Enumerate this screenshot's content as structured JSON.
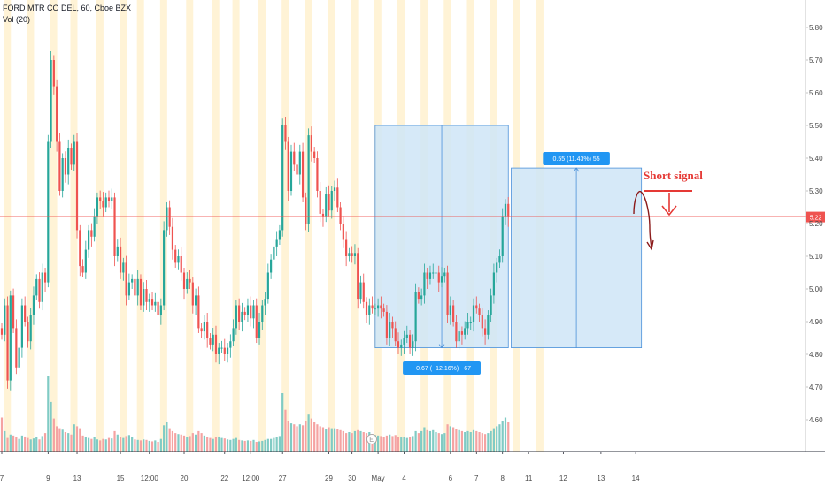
{
  "legend": {
    "symbol_line": "FORD MTR CO DEL, 60, Cboe BZX",
    "volume_line": "Vol (20)"
  },
  "colors": {
    "up": "#26a69a",
    "down": "#ef5350",
    "up_volume": "#80cbc4",
    "down_volume": "#f5a3a2",
    "session_band": "#fff3d6",
    "measure_fill": "#cfe5f7",
    "measure_border": "#4a90d9",
    "badge": "#2196f3",
    "price_line": "#ef5350",
    "annotation": "#e53935",
    "brush": "#8b1a1a"
  },
  "chart_data": {
    "type": "candlestick",
    "title": "FORD MTR CO DEL, 60, Cboe BZX",
    "symbol": "FORD MTR CO DEL",
    "interval": "60",
    "exchange": "Cboe BZX",
    "indicator": "Vol (20)",
    "y_axis": {
      "position": "right",
      "range": [
        4.52,
        5.88
      ],
      "ticks": [
        "4.60",
        "4.70",
        "4.80",
        "4.90",
        "5.00",
        "5.10",
        "5.20",
        "5.30",
        "5.40",
        "5.50",
        "5.60",
        "5.70",
        "5.80"
      ]
    },
    "x_axis": {
      "ticks": [
        {
          "i": 0,
          "label": "7"
        },
        {
          "i": 16,
          "label": "9"
        },
        {
          "i": 26,
          "label": "13"
        },
        {
          "i": 41,
          "label": "15"
        },
        {
          "i": 51,
          "label": "12:00"
        },
        {
          "i": 63,
          "label": "20"
        },
        {
          "i": 77,
          "label": "22"
        },
        {
          "i": 86,
          "label": "12:00"
        },
        {
          "i": 97,
          "label": "27"
        },
        {
          "i": 113,
          "label": "29"
        },
        {
          "i": 121,
          "label": "30"
        },
        {
          "i": 130,
          "label": "May"
        },
        {
          "i": 139,
          "label": "4"
        },
        {
          "i": 155,
          "label": "6"
        },
        {
          "i": 164,
          "label": "7"
        },
        {
          "i": 173,
          "label": "8"
        },
        {
          "i": 182,
          "label": "11"
        },
        {
          "i": 194,
          "label": "12"
        },
        {
          "i": 207,
          "label": "13"
        },
        {
          "i": 219,
          "label": "14"
        }
      ]
    },
    "last_price": {
      "value": 5.22,
      "label": "5.22"
    },
    "closes": [
      4.86,
      4.95,
      4.72,
      4.98,
      4.88,
      4.76,
      4.82,
      4.95,
      4.9,
      4.84,
      4.92,
      4.98,
      5.03,
      4.96,
      5.05,
      5.02,
      5.45,
      5.7,
      5.62,
      5.45,
      5.3,
      5.4,
      5.35,
      5.43,
      5.38,
      5.45,
      5.18,
      5.07,
      5.05,
      5.12,
      5.18,
      5.16,
      5.22,
      5.28,
      5.27,
      5.25,
      5.28,
      5.27,
      5.28,
      5.1,
      5.13,
      5.05,
      5.08,
      4.98,
      5.02,
      5.03,
      4.98,
      5.03,
      4.95,
      5.0,
      4.96,
      4.97,
      4.95,
      4.96,
      4.92,
      4.95,
      5.18,
      5.25,
      5.19,
      5.12,
      5.08,
      5.1,
      5.05,
      5.0,
      5.03,
      5.02,
      4.95,
      4.98,
      4.88,
      4.87,
      4.9,
      4.85,
      4.83,
      4.86,
      4.8,
      4.82,
      4.82,
      4.8,
      4.82,
      4.84,
      4.88,
      4.95,
      4.9,
      4.93,
      4.92,
      4.95,
      4.91,
      4.95,
      4.85,
      4.9,
      4.95,
      4.97,
      5.05,
      5.09,
      5.13,
      5.15,
      5.18,
      5.5,
      5.45,
      5.3,
      5.42,
      5.38,
      5.35,
      5.42,
      5.28,
      5.2,
      5.47,
      5.42,
      5.4,
      5.3,
      5.23,
      5.22,
      5.29,
      5.24,
      5.3,
      5.31,
      5.25,
      5.2,
      5.15,
      5.1,
      5.11,
      5.1,
      5.11,
      4.97,
      5.02,
      4.96,
      4.92,
      4.95,
      4.94,
      4.94,
      4.95,
      4.94,
      4.93,
      4.85,
      4.9,
      4.88,
      4.84,
      4.82,
      4.83,
      4.85,
      4.86,
      4.82,
      4.84,
      4.99,
      4.97,
      4.98,
      5.05,
      5.03,
      5.05,
      5.05,
      5.05,
      5.02,
      5.04,
      5.05,
      4.92,
      4.95,
      4.9,
      4.84,
      4.87,
      4.86,
      4.88,
      4.9,
      4.9,
      4.95,
      4.94,
      4.92,
      4.88,
      4.86,
      4.92,
      4.98,
      5.05,
      5.08,
      5.1,
      5.22,
      5.26,
      5.22
    ],
    "volumes": [
      700,
      420,
      280,
      350,
      330,
      300,
      260,
      330,
      310,
      280,
      250,
      270,
      300,
      250,
      320,
      380,
      1550,
      1020,
      680,
      520,
      480,
      450,
      400,
      380,
      350,
      560,
      520,
      480,
      330,
      300,
      280,
      260,
      300,
      250,
      230,
      260,
      250,
      280,
      270,
      420,
      350,
      300,
      280,
      320,
      340,
      300,
      250,
      240,
      230,
      250,
      240,
      220,
      210,
      230,
      200,
      260,
      540,
      600,
      480,
      420,
      380,
      360,
      350,
      330,
      300,
      320,
      380,
      350,
      420,
      380,
      330,
      300,
      280,
      260,
      300,
      310,
      280,
      270,
      250,
      240,
      260,
      280,
      240,
      230,
      220,
      230,
      220,
      240,
      200,
      210,
      220,
      240,
      260,
      260,
      280,
      300,
      320,
      1200,
      860,
      620,
      580,
      560,
      520,
      560,
      540,
      620,
      760,
      680,
      600,
      560,
      520,
      500,
      470,
      500,
      480,
      480,
      460,
      440,
      420,
      380,
      400,
      380,
      420,
      440,
      420,
      400,
      380,
      400,
      360,
      340,
      330,
      320,
      300,
      330,
      350,
      320,
      340,
      300,
      290,
      300,
      280,
      300,
      320,
      420,
      380,
      420,
      500,
      440,
      420,
      440,
      400,
      380,
      360,
      380,
      560,
      520,
      500,
      470,
      440,
      420,
      400,
      420,
      400,
      440,
      420,
      400,
      380,
      360,
      380,
      420,
      480,
      520,
      560,
      620,
      700,
      600
    ]
  },
  "measure_down": {
    "label": "−0.67 (−12.16%) −67"
  },
  "measure_up": {
    "label": "0.55 (11.43%) 55"
  },
  "annotation": {
    "text": "Short signal"
  }
}
